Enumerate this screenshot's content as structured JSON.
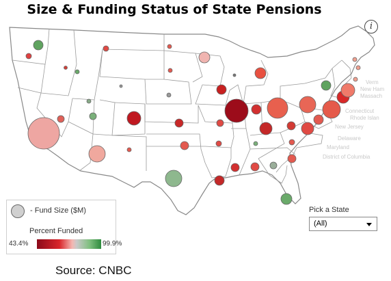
{
  "title": "Size & Funding Status of State Pensions",
  "info_glyph": "i",
  "legend": {
    "fund_size_label": "- Fund Size ($M)",
    "percent_funded_label": "Percent Funded",
    "min_label": "43.4%",
    "max_label": "99.9%",
    "color_low": "#8b0a1a",
    "color_mid": "#c9c9c9",
    "color_high": "#2e8b3e"
  },
  "picker": {
    "label": "Pick a State",
    "selected": "(All)"
  },
  "source": "Source: CNBC",
  "east_labels": [
    "Verm",
    "New Ham",
    "Massach",
    "Connecticut",
    "Rhode Islan",
    "New Jersey",
    "Delaware",
    "Maryland",
    "District of Columbia"
  ]
}
